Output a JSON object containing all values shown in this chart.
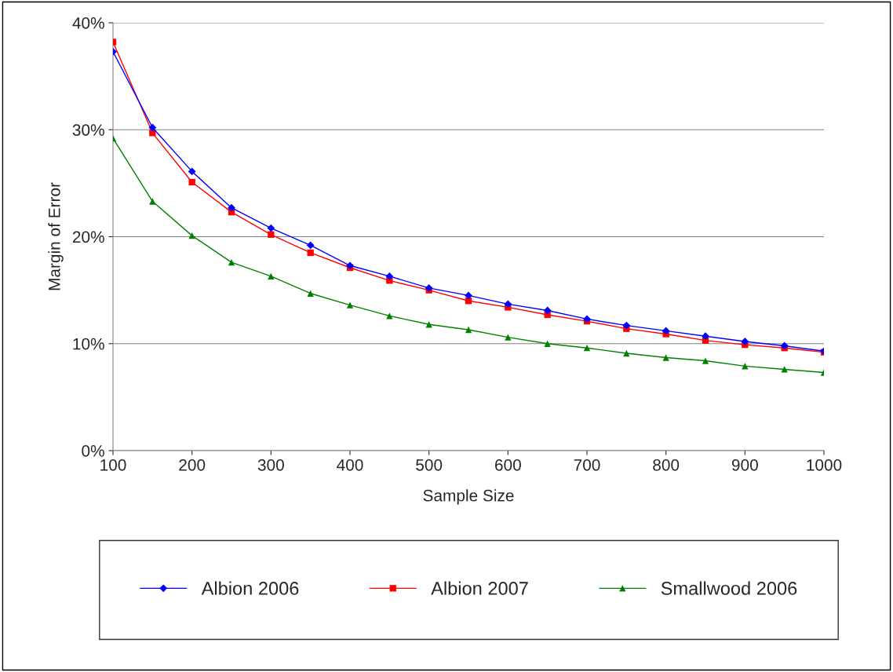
{
  "chart_data": {
    "type": "line",
    "xlabel": "Sample Size",
    "ylabel": "Margin of Error",
    "x": [
      100,
      150,
      200,
      250,
      300,
      350,
      400,
      450,
      500,
      550,
      600,
      650,
      700,
      750,
      800,
      850,
      900,
      950,
      1000
    ],
    "series": [
      {
        "name": "Albion 2006",
        "color": "#0000ff",
        "marker": "diamond",
        "values": [
          37.3,
          30.2,
          26.1,
          22.7,
          20.8,
          19.2,
          17.3,
          16.3,
          15.2,
          14.5,
          13.7,
          13.1,
          12.3,
          11.7,
          11.2,
          10.7,
          10.2,
          9.8,
          9.3
        ]
      },
      {
        "name": "Albion 2007",
        "color": "#ff0000",
        "marker": "square",
        "values": [
          38.2,
          29.7,
          25.1,
          22.3,
          20.2,
          18.5,
          17.1,
          15.9,
          15.0,
          14.0,
          13.4,
          12.7,
          12.1,
          11.4,
          10.9,
          10.3,
          9.9,
          9.6,
          9.2
        ]
      },
      {
        "name": "Smallwood 2006",
        "color": "#008000",
        "marker": "triangle",
        "values": [
          29.2,
          23.3,
          20.1,
          17.6,
          16.3,
          14.7,
          13.6,
          12.6,
          11.8,
          11.3,
          10.6,
          10.0,
          9.6,
          9.1,
          8.7,
          8.4,
          7.9,
          7.6,
          7.3
        ]
      }
    ],
    "xlim": [
      100,
      1000
    ],
    "xticks": [
      100,
      200,
      300,
      400,
      500,
      600,
      700,
      800,
      900,
      1000
    ],
    "ylim": [
      0,
      40
    ],
    "yticks": [
      {
        "value": 0,
        "label": "0%"
      },
      {
        "value": 10,
        "label": "10%"
      },
      {
        "value": 20,
        "label": "20%"
      },
      {
        "value": 30,
        "label": "30%"
      },
      {
        "value": 40,
        "label": "40%"
      }
    ],
    "grid": "y",
    "legend": "bottom"
  }
}
